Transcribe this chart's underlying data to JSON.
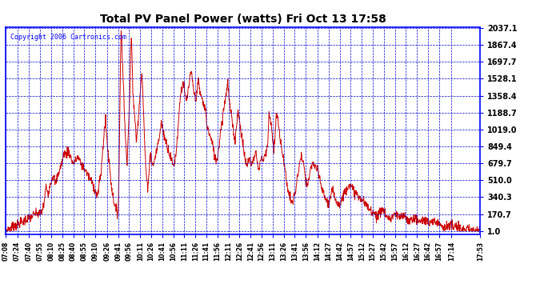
{
  "title": "Total PV Panel Power (watts) Fri Oct 13 17:58",
  "copyright": "Copyright 2006 Cartronics.com",
  "yticks": [
    1.0,
    170.7,
    340.3,
    510.0,
    679.7,
    849.4,
    1019.0,
    1188.7,
    1358.4,
    1528.1,
    1697.7,
    1867.4,
    2037.1
  ],
  "ymin": 1.0,
  "ymax": 2037.1,
  "background_color": "#ffffff",
  "line_color": "#cc0000",
  "grid_color": "#0000cc",
  "xtick_labels": [
    "07:08",
    "07:24",
    "07:40",
    "07:55",
    "08:10",
    "08:25",
    "08:40",
    "08:55",
    "09:10",
    "09:26",
    "09:41",
    "09:56",
    "10:11",
    "10:26",
    "10:41",
    "10:56",
    "11:11",
    "11:26",
    "11:41",
    "11:56",
    "12:11",
    "12:26",
    "12:41",
    "12:56",
    "13:11",
    "13:26",
    "13:41",
    "13:56",
    "14:12",
    "14:27",
    "14:42",
    "14:57",
    "15:12",
    "15:27",
    "15:42",
    "15:57",
    "16:12",
    "16:27",
    "16:42",
    "16:57",
    "17:14",
    "17:53"
  ]
}
